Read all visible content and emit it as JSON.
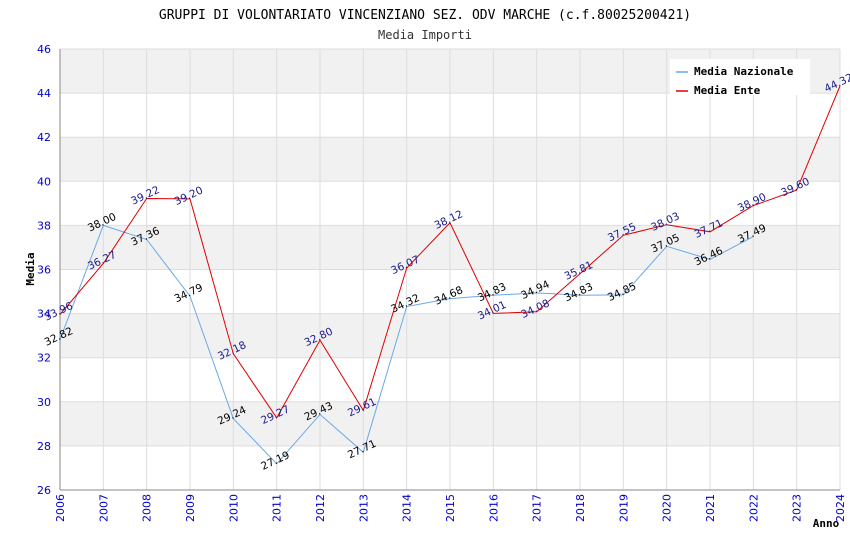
{
  "chart_data": {
    "type": "line",
    "title": "GRUPPI DI VOLONTARIATO VINCENZIANO SEZ. ODV MARCHE (c.f.80025200421)",
    "subtitle": "Media Importi",
    "xlabel": "Anno",
    "ylabel": "Media",
    "ylim": [
      26,
      46
    ],
    "y_ticks": [
      26,
      28,
      30,
      32,
      34,
      36,
      38,
      40,
      42,
      44,
      46
    ],
    "x": [
      "2006",
      "2007",
      "2008",
      "2009",
      "2010",
      "2011",
      "2012",
      "2013",
      "2014",
      "2015",
      "2016",
      "2017",
      "2018",
      "2019",
      "2020",
      "2021",
      "2022",
      "2023",
      "2024"
    ],
    "grid": true,
    "legend_position": "top-right",
    "series": [
      {
        "name": "Media Nazionale",
        "color": "#6aa9e6",
        "values": [
          32.82,
          38.0,
          37.36,
          34.79,
          29.24,
          27.19,
          29.43,
          27.71,
          34.32,
          34.68,
          34.83,
          34.94,
          34.83,
          34.85,
          37.05,
          36.46,
          37.49,
          null,
          null
        ],
        "labels": [
          "32.82",
          "38.00",
          "37.36",
          "34.79",
          "29.24",
          "27.19",
          "29.43",
          "27.71",
          "34.32",
          "34.68",
          "34.83",
          "34.94",
          "34.83",
          "34.85",
          "37.05",
          "36.46",
          "37.49",
          null,
          null
        ]
      },
      {
        "name": "Media Ente",
        "color": "#e00000",
        "values": [
          33.96,
          36.27,
          39.22,
          39.2,
          32.18,
          29.27,
          32.8,
          29.61,
          36.07,
          38.12,
          34.01,
          34.08,
          35.81,
          37.55,
          38.03,
          37.71,
          38.9,
          39.6,
          44.32
        ],
        "labels": [
          "33.96",
          "36.27",
          "39.22",
          "39.20",
          "32.18",
          "29.27",
          "32.80",
          "29.61",
          "36.07",
          "38.12",
          "34.01",
          "34.08",
          "35.81",
          "37.55",
          "38.03",
          "37.71",
          "38.90",
          "39.60",
          "44.32"
        ]
      }
    ]
  }
}
